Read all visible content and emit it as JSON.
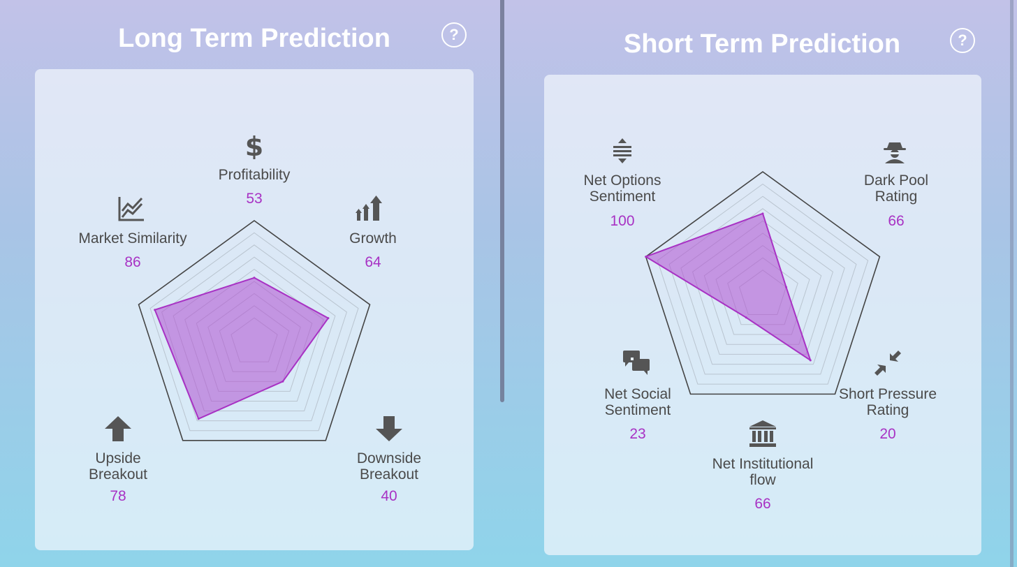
{
  "colors": {
    "accent": "#a832c4",
    "fill": "rgba(176,80,210,0.55)",
    "text": "#4a4a4a"
  },
  "help_label": "?",
  "chart_data": [
    {
      "type": "radar",
      "title": "Long Term Prediction",
      "max": 100,
      "axes": [
        {
          "label": "Profitability",
          "value": 53,
          "icon": "dollar-icon"
        },
        {
          "label": "Growth",
          "value": 64,
          "icon": "growth-arrows-icon"
        },
        {
          "label": "Downside\nBreakout",
          "value": 40,
          "icon": "arrow-down-icon"
        },
        {
          "label": "Upside\nBreakout",
          "value": 78,
          "icon": "arrow-up-icon"
        },
        {
          "label": "Market Similarity",
          "value": 86,
          "icon": "line-chart-icon"
        }
      ]
    },
    {
      "type": "radar",
      "title": "Short Term Prediction",
      "max": 100,
      "axes": [
        {
          "label": "Dark Pool\nRating",
          "value": 66,
          "icon": "spy-icon"
        },
        {
          "label": "Short Pressure\nRating",
          "value": 20,
          "icon": "compress-arrows-icon"
        },
        {
          "label": "Net Institutional\nflow",
          "value": 66,
          "icon": "bank-icon"
        },
        {
          "label": "Net Social\nSentiment",
          "value": 23,
          "icon": "chat-bubbles-icon"
        },
        {
          "label": "Net Options\nSentiment",
          "value": 100,
          "icon": "sort-arrows-icon"
        }
      ]
    }
  ]
}
